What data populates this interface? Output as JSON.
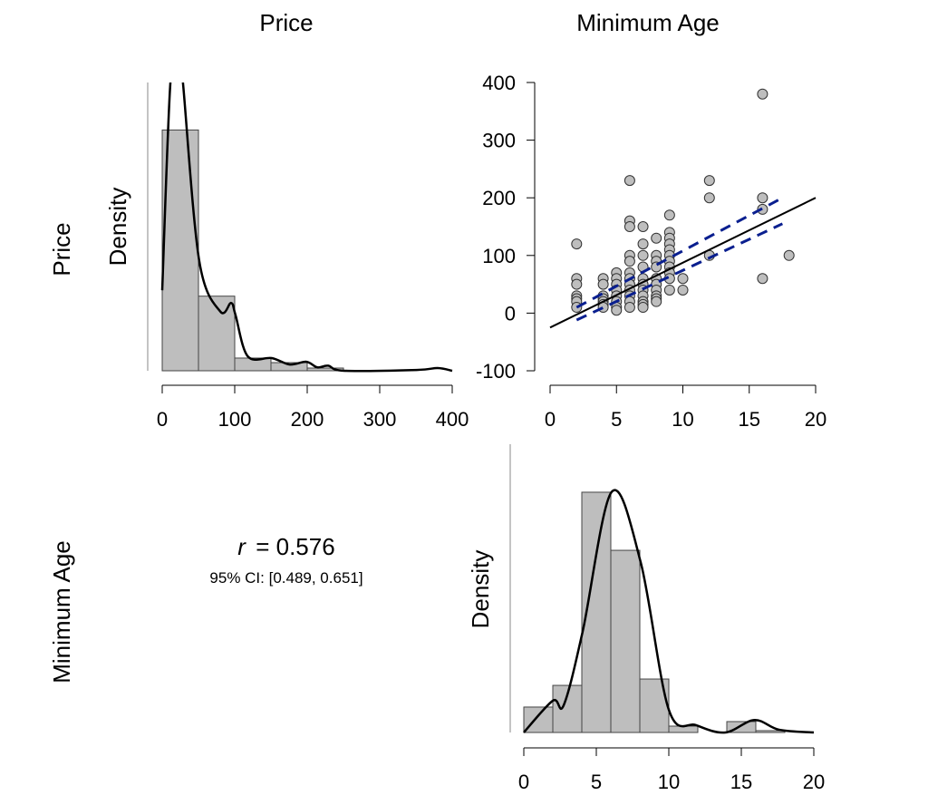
{
  "column_titles": [
    "Price",
    "Minimum Age"
  ],
  "row_labels": [
    "Price",
    "Minimum Age"
  ],
  "colors": {
    "bar_fill": "#bebebe",
    "point_fill": "#bebebe",
    "ci_line": "#0a1f8f",
    "fit_line": "#000000"
  },
  "chart_data": [
    {
      "type": "bar",
      "panel": "Price histogram",
      "ylabel": "Density",
      "xlim": [
        0,
        400
      ],
      "x_ticks": [
        "0",
        "100",
        "200",
        "300",
        "400"
      ],
      "ylim": [
        0,
        0.017
      ],
      "bins": [
        [
          0,
          50
        ],
        [
          50,
          100
        ],
        [
          100,
          150
        ],
        [
          150,
          200
        ],
        [
          200,
          250
        ]
      ],
      "values": [
        0.0142,
        0.0044,
        0.00075,
        0.00048,
        0.00016
      ],
      "density_curve": [
        [
          0,
          0.00475
        ],
        [
          11,
          0.0168
        ],
        [
          22,
          0.02
        ],
        [
          29,
          0.0168
        ],
        [
          51,
          0.0065
        ],
        [
          80,
          0.0035
        ],
        [
          95,
          0.004
        ],
        [
          101,
          0.0033
        ],
        [
          118,
          0.00085
        ],
        [
          151,
          0.00075
        ],
        [
          176,
          0.00037
        ],
        [
          199,
          0.00053
        ],
        [
          214,
          0.0002
        ],
        [
          229,
          0.0003
        ],
        [
          251,
          0
        ],
        [
          351,
          5e-05
        ],
        [
          380,
          0.00016
        ],
        [
          400,
          0
        ]
      ]
    },
    {
      "type": "scatter",
      "panel": "Price vs Minimum Age",
      "xlim": [
        0,
        20
      ],
      "ylim": [
        -100,
        400
      ],
      "x_ticks": [
        "0",
        "5",
        "10",
        "15",
        "20"
      ],
      "y_ticks": [
        "-100",
        "0",
        "100",
        "200",
        "300",
        "400"
      ],
      "points": [
        [
          2,
          120
        ],
        [
          2,
          60
        ],
        [
          2,
          50
        ],
        [
          2,
          30
        ],
        [
          2,
          25
        ],
        [
          2,
          20
        ],
        [
          2,
          10
        ],
        [
          4,
          60
        ],
        [
          4,
          50
        ],
        [
          4,
          30
        ],
        [
          4,
          25
        ],
        [
          4,
          20
        ],
        [
          4,
          15
        ],
        [
          4,
          10
        ],
        [
          5,
          70
        ],
        [
          5,
          60
        ],
        [
          5,
          50
        ],
        [
          5,
          40
        ],
        [
          5,
          30
        ],
        [
          5,
          20
        ],
        [
          5,
          10
        ],
        [
          5,
          5
        ],
        [
          6,
          230
        ],
        [
          6,
          160
        ],
        [
          6,
          150
        ],
        [
          6,
          100
        ],
        [
          6,
          90
        ],
        [
          6,
          70
        ],
        [
          6,
          60
        ],
        [
          6,
          50
        ],
        [
          6,
          40
        ],
        [
          6,
          30
        ],
        [
          6,
          20
        ],
        [
          6,
          10
        ],
        [
          7,
          150
        ],
        [
          7,
          120
        ],
        [
          7,
          100
        ],
        [
          7,
          80
        ],
        [
          7,
          60
        ],
        [
          7,
          50
        ],
        [
          7,
          40
        ],
        [
          7,
          30
        ],
        [
          7,
          20
        ],
        [
          7,
          15
        ],
        [
          7,
          10
        ],
        [
          8,
          130
        ],
        [
          8,
          100
        ],
        [
          8,
          90
        ],
        [
          8,
          80
        ],
        [
          8,
          60
        ],
        [
          8,
          50
        ],
        [
          8,
          40
        ],
        [
          8,
          30
        ],
        [
          8,
          25
        ],
        [
          8,
          20
        ],
        [
          9,
          170
        ],
        [
          9,
          140
        ],
        [
          9,
          130
        ],
        [
          9,
          120
        ],
        [
          9,
          110
        ],
        [
          9,
          100
        ],
        [
          9,
          90
        ],
        [
          9,
          80
        ],
        [
          9,
          70
        ],
        [
          9,
          60
        ],
        [
          9,
          40
        ],
        [
          10,
          60
        ],
        [
          10,
          40
        ],
        [
          12,
          230
        ],
        [
          12,
          200
        ],
        [
          12,
          100
        ],
        [
          16,
          380
        ],
        [
          16,
          200
        ],
        [
          16,
          180
        ],
        [
          16,
          60
        ],
        [
          18,
          100
        ]
      ],
      "fit_line": [
        [
          0,
          -25
        ],
        [
          20,
          200
        ]
      ],
      "ci_upper": [
        [
          2,
          10
        ],
        [
          17.5,
          200
        ]
      ],
      "ci_lower": [
        [
          2,
          -12
        ],
        [
          17.5,
          155
        ]
      ]
    },
    {
      "type": "bar",
      "panel": "Minimum Age histogram",
      "ylabel": "Density",
      "xlim": [
        0,
        20
      ],
      "x_ticks": [
        "0",
        "5",
        "10",
        "15",
        "20"
      ],
      "ylim": [
        0,
        0.254
      ],
      "bins": [
        [
          0,
          2
        ],
        [
          2,
          4
        ],
        [
          4,
          6
        ],
        [
          6,
          8
        ],
        [
          8,
          10
        ],
        [
          10,
          12
        ],
        [
          12,
          14
        ],
        [
          14,
          16
        ],
        [
          16,
          18
        ]
      ],
      "values": [
        0.0224,
        0.0415,
        0.2117,
        0.1605,
        0.0471,
        0.0056,
        0,
        0.0096,
        0.0016
      ],
      "density_curve": [
        [
          0,
          0
        ],
        [
          2,
          0.028
        ],
        [
          2.75,
          0.024
        ],
        [
          4.06,
          0.089
        ],
        [
          6.06,
          0.212
        ],
        [
          8.06,
          0.15
        ],
        [
          10,
          0.02
        ],
        [
          11.9,
          0.0064
        ],
        [
          13.9,
          0
        ],
        [
          15.9,
          0.011
        ],
        [
          17.6,
          0.0024
        ],
        [
          20,
          0
        ]
      ]
    }
  ],
  "correlation": {
    "r_symbol": "r",
    "r_value": "= 0.576",
    "ci_text": "95% CI: [0.489, 0.651]"
  }
}
